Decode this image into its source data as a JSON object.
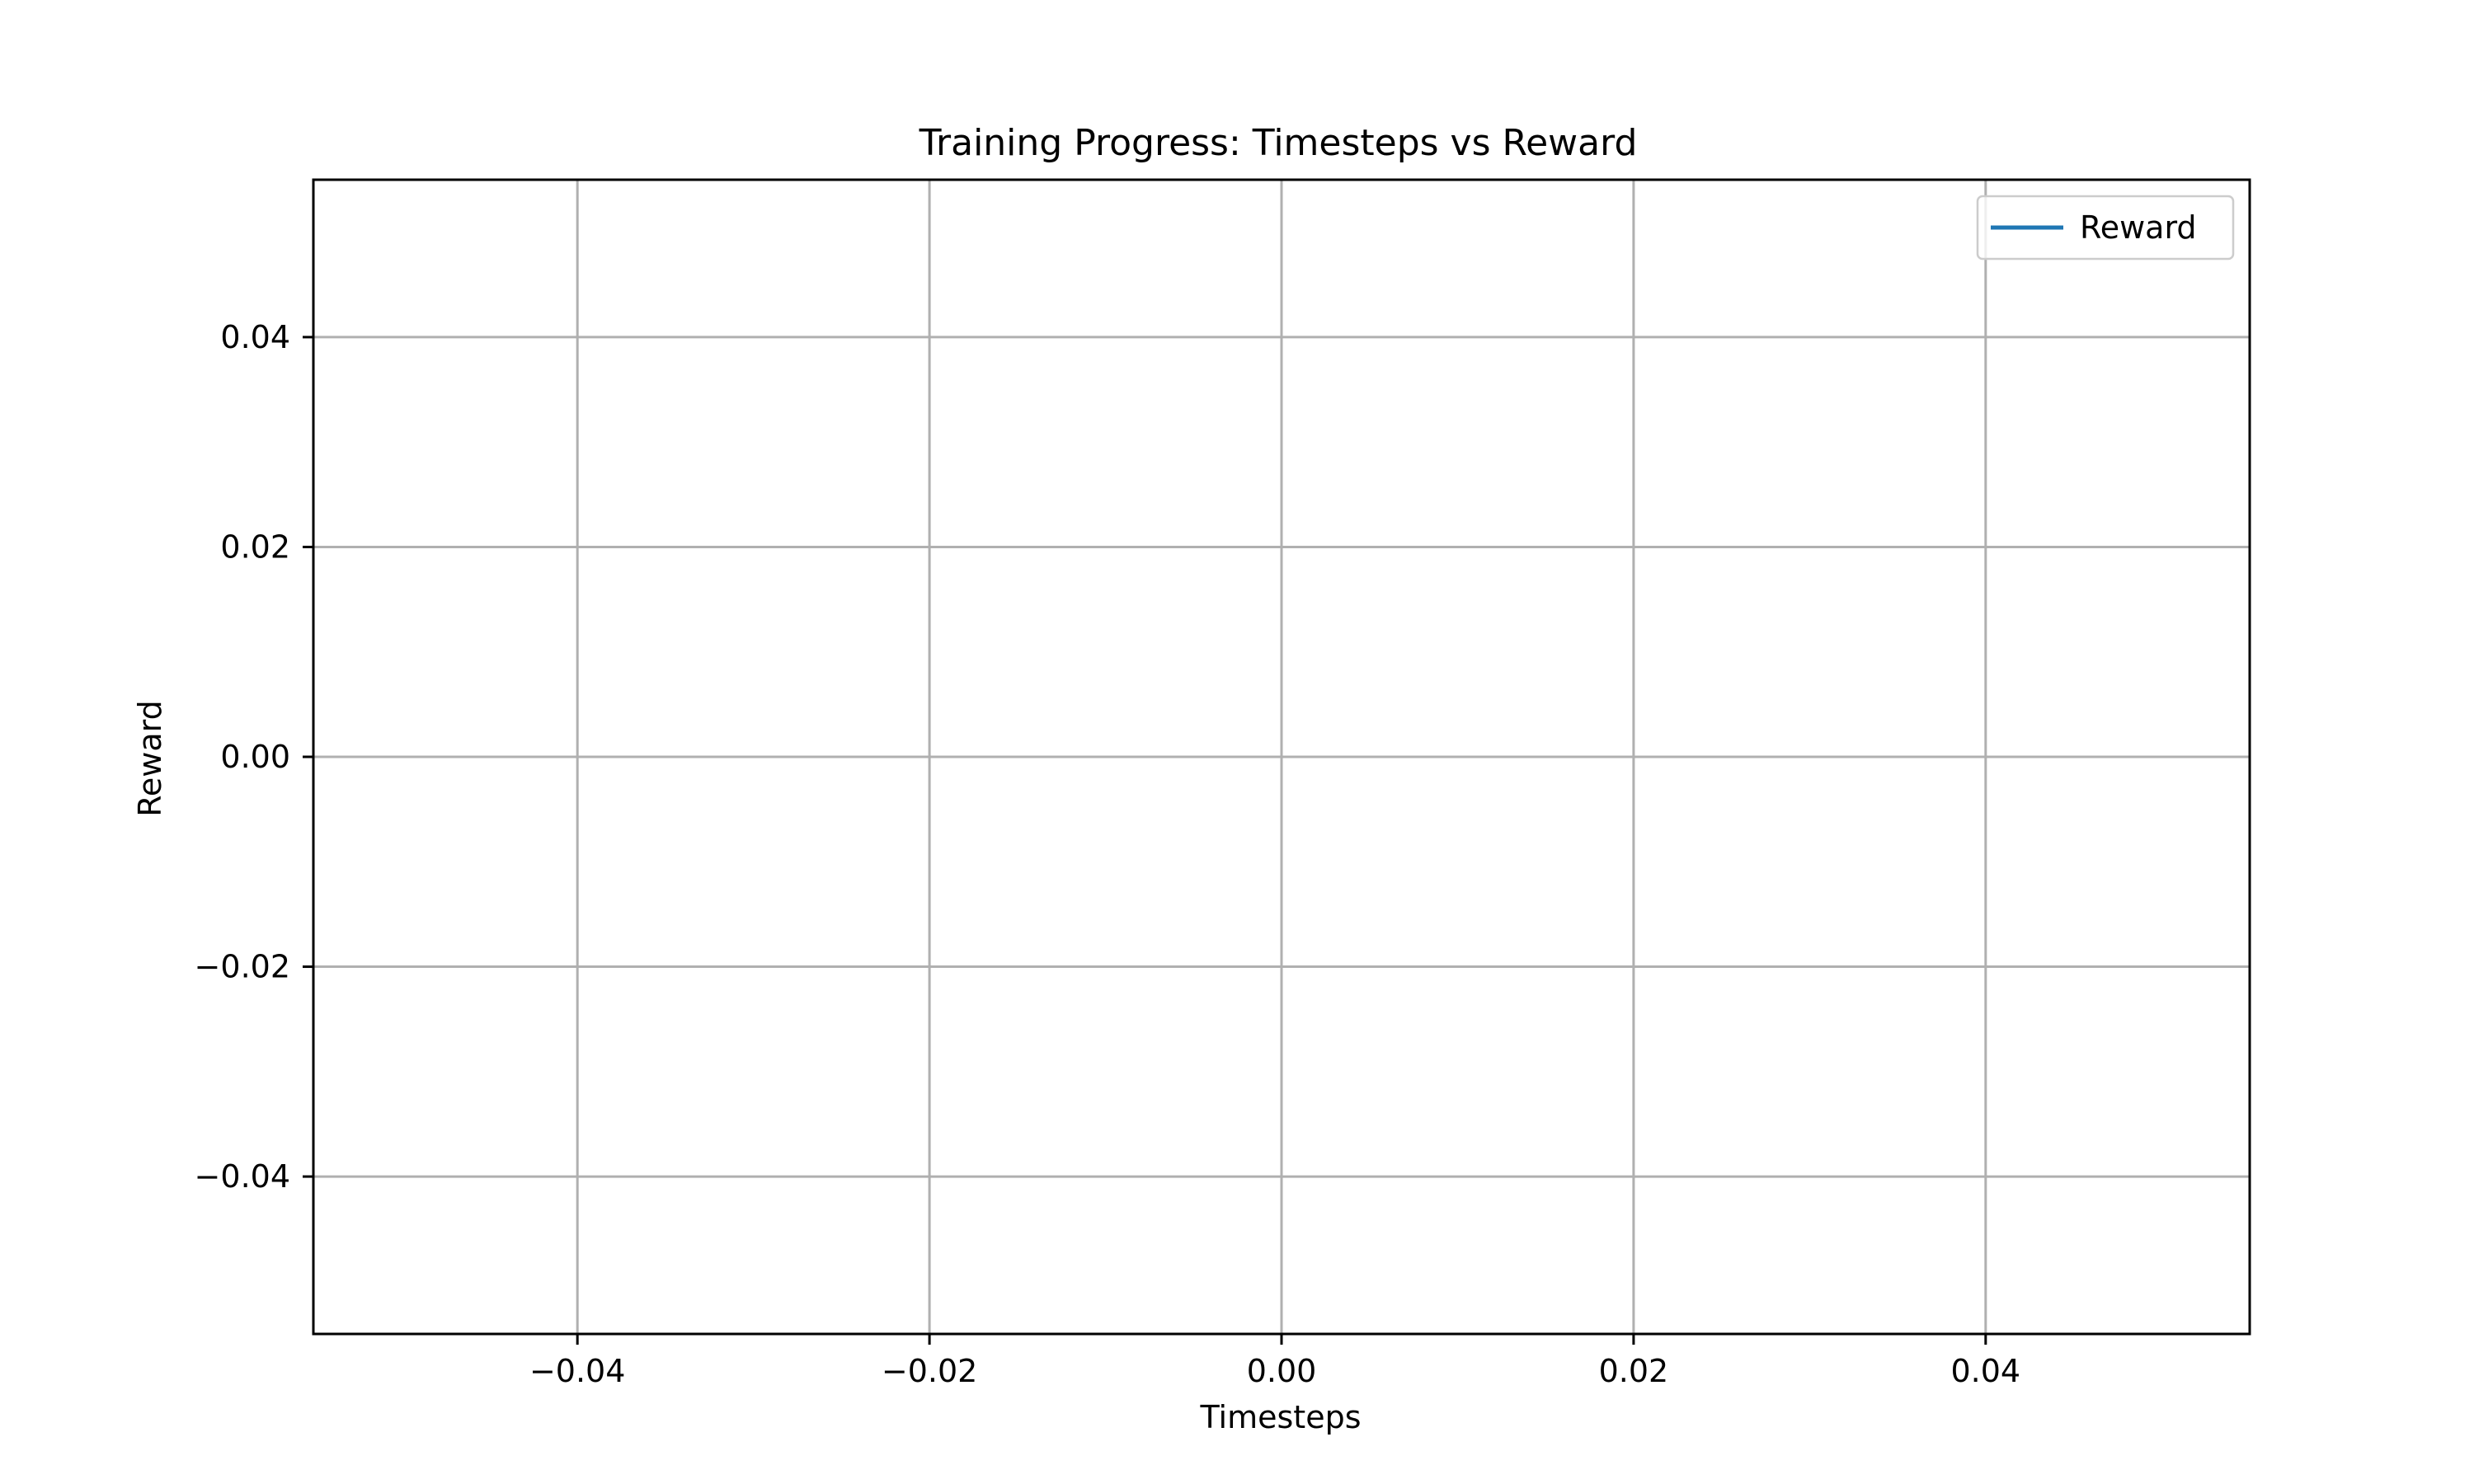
{
  "chart_data": {
    "type": "line",
    "title": "Training Progress: Timesteps vs Reward",
    "xlabel": "Timesteps",
    "ylabel": "Reward",
    "xlim": [
      -0.055,
      0.055
    ],
    "ylim": [
      -0.055,
      0.055
    ],
    "xticks": [
      -0.04,
      -0.02,
      0.0,
      0.02,
      0.04
    ],
    "yticks": [
      -0.04,
      -0.02,
      0.0,
      0.02,
      0.04
    ],
    "xtick_labels": [
      "−0.04",
      "−0.02",
      "0.00",
      "0.02",
      "0.04"
    ],
    "ytick_labels": [
      "−0.04",
      "−0.02",
      "0.00",
      "0.02",
      "0.04"
    ],
    "grid": true,
    "legend_position": "top-right",
    "series": [
      {
        "name": "Reward",
        "color": "#1f77b4",
        "x": [],
        "y": []
      }
    ]
  }
}
